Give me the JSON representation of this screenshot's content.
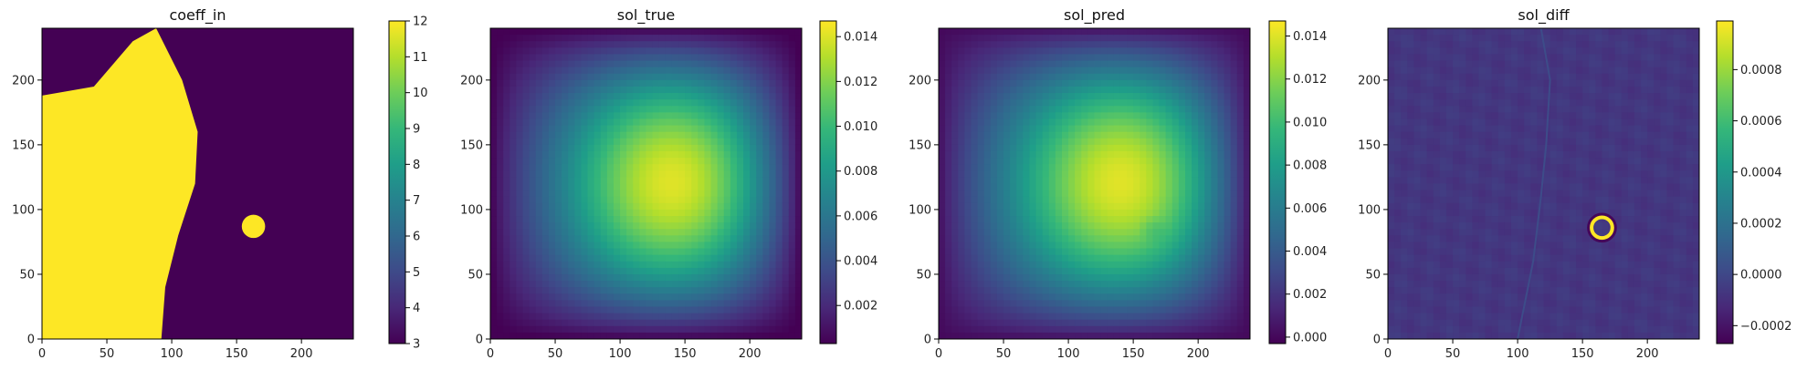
{
  "chart_data": [
    {
      "type": "heatmap",
      "title": "coeff_in",
      "field": "binary-inclusion",
      "xlim": [
        0,
        240
      ],
      "ylim": [
        0,
        240
      ],
      "xticks": [
        0,
        50,
        100,
        150,
        200
      ],
      "yticks": [
        0,
        50,
        100,
        150,
        200
      ],
      "colorbar": {
        "range": [
          3,
          12
        ],
        "ticks": [
          3,
          4,
          5,
          6,
          7,
          8,
          9,
          10,
          11,
          12
        ],
        "tick_labels": [
          "3",
          "4",
          "5",
          "6",
          "7",
          "8",
          "9",
          "10",
          "11",
          "12"
        ]
      },
      "colormap": "viridis",
      "values": {
        "high": 12,
        "low": 3
      },
      "left_region_boundary": [
        [
          88,
          240
        ],
        [
          108,
          200
        ],
        [
          120,
          160
        ],
        [
          118,
          120
        ],
        [
          105,
          80
        ],
        [
          95,
          40
        ],
        [
          92,
          0
        ]
      ],
      "left_region_top_edge": [
        [
          0,
          188
        ],
        [
          40,
          195
        ],
        [
          70,
          230
        ],
        [
          88,
          240
        ]
      ],
      "blob": {
        "cx": 163,
        "cy": 87,
        "r": 9
      }
    },
    {
      "type": "heatmap",
      "title": "sol_true",
      "field": "smooth-solution",
      "xlim": [
        0,
        240
      ],
      "ylim": [
        0,
        240
      ],
      "xticks": [
        0,
        50,
        100,
        150,
        200
      ],
      "yticks": [
        0,
        50,
        100,
        150,
        200
      ],
      "colorbar": {
        "range": [
          0.0003,
          0.0147
        ],
        "ticks": [
          0.002,
          0.004,
          0.006,
          0.008,
          0.01,
          0.012,
          0.014
        ],
        "tick_labels": [
          "0.002",
          "0.004",
          "0.006",
          "0.008",
          "0.010",
          "0.012",
          "0.014"
        ]
      },
      "colormap": "viridis",
      "peak": {
        "x": 158,
        "y": 122,
        "value": 0.0147
      }
    },
    {
      "type": "heatmap",
      "title": "sol_pred",
      "field": "smooth-solution",
      "xlim": [
        0,
        240
      ],
      "ylim": [
        0,
        240
      ],
      "xticks": [
        0,
        50,
        100,
        150,
        200
      ],
      "yticks": [
        0,
        50,
        100,
        150,
        200
      ],
      "colorbar": {
        "range": [
          -0.0003,
          0.0147
        ],
        "ticks": [
          0.0,
          0.002,
          0.004,
          0.006,
          0.008,
          0.01,
          0.012,
          0.014
        ],
        "tick_labels": [
          "0.000",
          "0.002",
          "0.004",
          "0.006",
          "0.008",
          "0.010",
          "0.012",
          "0.014"
        ]
      },
      "colormap": "viridis",
      "peak": {
        "x": 158,
        "y": 122,
        "value": 0.0147
      },
      "artifact": {
        "x": 165,
        "y": 85
      }
    },
    {
      "type": "heatmap",
      "title": "sol_diff",
      "field": "difference",
      "xlim": [
        0,
        240
      ],
      "ylim": [
        0,
        240
      ],
      "xticks": [
        0,
        50,
        100,
        150,
        200
      ],
      "yticks": [
        0,
        50,
        100,
        150,
        200
      ],
      "colorbar": {
        "range": [
          -0.00027,
          0.00099
        ],
        "ticks": [
          -0.0002,
          0.0,
          0.0002,
          0.0004,
          0.0006,
          0.0008
        ],
        "tick_labels": [
          "−0.0002",
          "0.0000",
          "0.0002",
          "0.0004",
          "0.0006",
          "0.0008"
        ]
      },
      "colormap": "viridis",
      "ring": {
        "x": 165,
        "y": 86,
        "r": 8,
        "max": 0.00099,
        "min": -0.00025
      },
      "background_value": -7e-05
    }
  ]
}
